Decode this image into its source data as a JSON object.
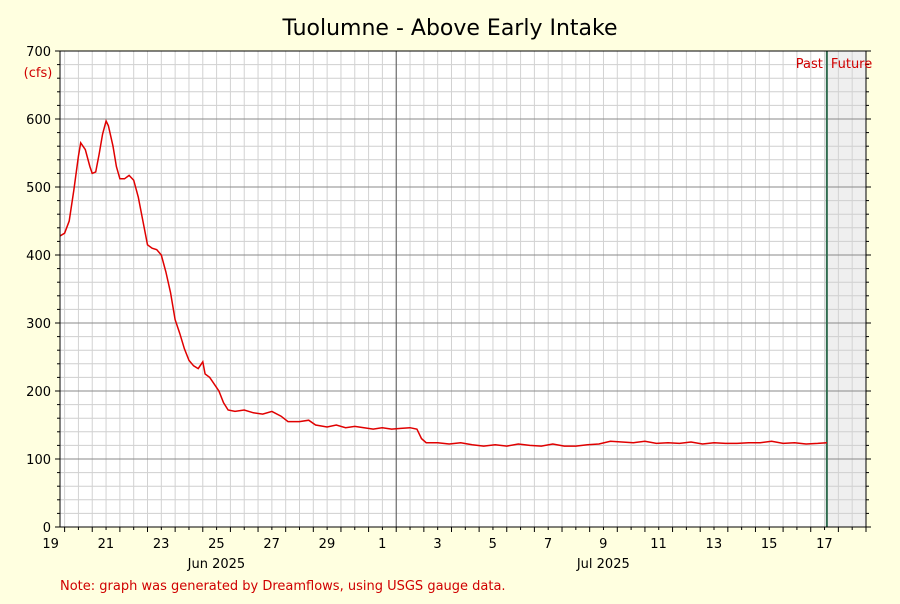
{
  "chart_data": {
    "type": "line",
    "title": "Tuolumne - Above Early Intake",
    "ylabel": "(cfs)",
    "xlabel": "",
    "ylim": [
      0,
      700
    ],
    "y_ticks": [
      0,
      100,
      200,
      300,
      400,
      500,
      600,
      700
    ],
    "xlim": [
      "2025-06-18T20:00",
      "2025-07-18T00:00"
    ],
    "x_tick_labels": [
      {
        "date": "2025-06-19",
        "label": "19"
      },
      {
        "date": "2025-06-21",
        "label": "21"
      },
      {
        "date": "2025-06-23",
        "label": "23"
      },
      {
        "date": "2025-06-25",
        "label": "25"
      },
      {
        "date": "2025-06-27",
        "label": "27"
      },
      {
        "date": "2025-06-29",
        "label": "29"
      },
      {
        "date": "2025-07-01",
        "label": "1"
      },
      {
        "date": "2025-07-03",
        "label": "3"
      },
      {
        "date": "2025-07-05",
        "label": "5"
      },
      {
        "date": "2025-07-07",
        "label": "7"
      },
      {
        "date": "2025-07-09",
        "label": "9"
      },
      {
        "date": "2025-07-11",
        "label": "11"
      },
      {
        "date": "2025-07-13",
        "label": "13"
      },
      {
        "date": "2025-07-15",
        "label": "15"
      },
      {
        "date": "2025-07-17",
        "label": "17"
      }
    ],
    "month_labels": [
      {
        "date": "2025-06-25",
        "label": "Jun 2025"
      },
      {
        "date": "2025-07-09",
        "label": "Jul 2025"
      }
    ],
    "month_divider": "2025-07-01",
    "now_marker": "2025-07-16T14:00",
    "past_label": "Past",
    "future_label": "Future",
    "footnote": "Note: graph was generated by Dreamflows, using USGS gauge data.",
    "grid": true,
    "series": [
      {
        "color": "#e00000",
        "points": [
          [
            "2025-06-18T20:00",
            428
          ],
          [
            "2025-06-19T00:00",
            432
          ],
          [
            "2025-06-19T04:00",
            450
          ],
          [
            "2025-06-19T08:00",
            495
          ],
          [
            "2025-06-19T12:00",
            545
          ],
          [
            "2025-06-19T14:00",
            565
          ],
          [
            "2025-06-19T18:00",
            555
          ],
          [
            "2025-06-19T22:00",
            530
          ],
          [
            "2025-06-20T00:00",
            520
          ],
          [
            "2025-06-20T03:00",
            522
          ],
          [
            "2025-06-20T06:00",
            548
          ],
          [
            "2025-06-20T09:00",
            578
          ],
          [
            "2025-06-20T12:00",
            597
          ],
          [
            "2025-06-20T14:00",
            590
          ],
          [
            "2025-06-20T18:00",
            560
          ],
          [
            "2025-06-20T21:00",
            530
          ],
          [
            "2025-06-21T00:00",
            512
          ],
          [
            "2025-06-21T04:00",
            512
          ],
          [
            "2025-06-21T08:00",
            517
          ],
          [
            "2025-06-21T12:00",
            510
          ],
          [
            "2025-06-21T16:00",
            485
          ],
          [
            "2025-06-21T20:00",
            450
          ],
          [
            "2025-06-22T00:00",
            415
          ],
          [
            "2025-06-22T04:00",
            410
          ],
          [
            "2025-06-22T08:00",
            408
          ],
          [
            "2025-06-22T12:00",
            400
          ],
          [
            "2025-06-22T16:00",
            375
          ],
          [
            "2025-06-22T20:00",
            345
          ],
          [
            "2025-06-23T00:00",
            305
          ],
          [
            "2025-06-23T04:00",
            285
          ],
          [
            "2025-06-23T08:00",
            262
          ],
          [
            "2025-06-23T12:00",
            245
          ],
          [
            "2025-06-23T16:00",
            237
          ],
          [
            "2025-06-23T20:00",
            233
          ],
          [
            "2025-06-24T00:00",
            243
          ],
          [
            "2025-06-24T02:00",
            225
          ],
          [
            "2025-06-24T06:00",
            220
          ],
          [
            "2025-06-24T10:00",
            210
          ],
          [
            "2025-06-24T14:00",
            200
          ],
          [
            "2025-06-24T18:00",
            183
          ],
          [
            "2025-06-24T22:00",
            172
          ],
          [
            "2025-06-25T04:00",
            170
          ],
          [
            "2025-06-25T12:00",
            172
          ],
          [
            "2025-06-25T20:00",
            168
          ],
          [
            "2025-06-26T04:00",
            166
          ],
          [
            "2025-06-26T12:00",
            170
          ],
          [
            "2025-06-26T20:00",
            163
          ],
          [
            "2025-06-27T02:00",
            155
          ],
          [
            "2025-06-27T12:00",
            155
          ],
          [
            "2025-06-27T20:00",
            157
          ],
          [
            "2025-06-28T02:00",
            150
          ],
          [
            "2025-06-28T12:00",
            147
          ],
          [
            "2025-06-28T20:00",
            150
          ],
          [
            "2025-06-29T04:00",
            146
          ],
          [
            "2025-06-29T12:00",
            148
          ],
          [
            "2025-06-29T20:00",
            146
          ],
          [
            "2025-06-30T04:00",
            144
          ],
          [
            "2025-06-30T12:00",
            146
          ],
          [
            "2025-06-30T20:00",
            144
          ],
          [
            "2025-07-01T04:00",
            145
          ],
          [
            "2025-07-01T12:00",
            146
          ],
          [
            "2025-07-01T18:00",
            144
          ],
          [
            "2025-07-01T22:00",
            130
          ],
          [
            "2025-07-02T02:00",
            124
          ],
          [
            "2025-07-02T12:00",
            124
          ],
          [
            "2025-07-02T22:00",
            122
          ],
          [
            "2025-07-03T08:00",
            124
          ],
          [
            "2025-07-03T18:00",
            121
          ],
          [
            "2025-07-04T04:00",
            119
          ],
          [
            "2025-07-04T14:00",
            121
          ],
          [
            "2025-07-05T00:00",
            119
          ],
          [
            "2025-07-05T10:00",
            122
          ],
          [
            "2025-07-05T20:00",
            120
          ],
          [
            "2025-07-06T06:00",
            119
          ],
          [
            "2025-07-06T16:00",
            122
          ],
          [
            "2025-07-07T02:00",
            119
          ],
          [
            "2025-07-07T12:00",
            119
          ],
          [
            "2025-07-07T22:00",
            121
          ],
          [
            "2025-07-08T08:00",
            122
          ],
          [
            "2025-07-08T18:00",
            126
          ],
          [
            "2025-07-09T04:00",
            125
          ],
          [
            "2025-07-09T14:00",
            124
          ],
          [
            "2025-07-10T00:00",
            126
          ],
          [
            "2025-07-10T10:00",
            123
          ],
          [
            "2025-07-10T20:00",
            124
          ],
          [
            "2025-07-11T06:00",
            123
          ],
          [
            "2025-07-11T16:00",
            125
          ],
          [
            "2025-07-12T02:00",
            122
          ],
          [
            "2025-07-12T12:00",
            124
          ],
          [
            "2025-07-12T22:00",
            123
          ],
          [
            "2025-07-13T08:00",
            123
          ],
          [
            "2025-07-13T18:00",
            124
          ],
          [
            "2025-07-14T04:00",
            124
          ],
          [
            "2025-07-14T14:00",
            126
          ],
          [
            "2025-07-15T00:00",
            123
          ],
          [
            "2025-07-15T10:00",
            124
          ],
          [
            "2025-07-15T20:00",
            122
          ],
          [
            "2025-07-16T06:00",
            123
          ],
          [
            "2025-07-16T14:00",
            124
          ]
        ]
      }
    ]
  }
}
